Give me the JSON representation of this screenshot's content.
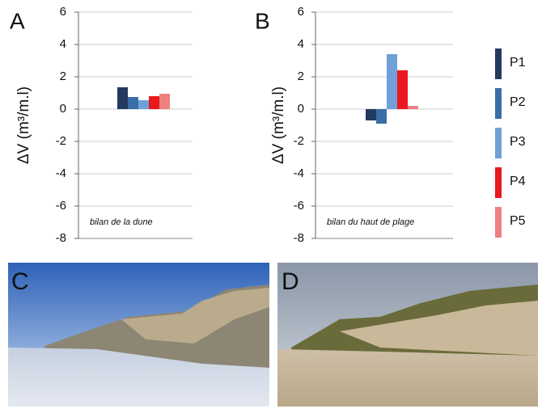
{
  "chart_data": [
    {
      "type": "bar",
      "panel": "A",
      "ylabel": "ΔV (m³/m.l)",
      "annotation": "bilan de la dune",
      "ylim": [
        -8,
        6
      ],
      "yticks": [
        -8,
        -6,
        -4,
        -2,
        0,
        2,
        4,
        6
      ],
      "grid": true,
      "series": [
        {
          "color": "#243a5e",
          "values": [
            1.35
          ]
        },
        {
          "color": "#3a6ea8",
          "values": [
            0.75
          ]
        },
        {
          "color": "#6fa0d8",
          "values": [
            0.55
          ]
        },
        {
          "color": "#e8191f",
          "values": [
            0.8
          ]
        },
        {
          "color": "#f08080",
          "values": [
            0.95
          ]
        }
      ]
    },
    {
      "type": "bar",
      "panel": "B",
      "ylabel": "ΔV (m³/m.l)",
      "annotation": "bilan du haut de plage",
      "ylim": [
        -8,
        6
      ],
      "yticks": [
        -8,
        -6,
        -4,
        -2,
        0,
        2,
        4,
        6
      ],
      "grid": true,
      "legend": "right",
      "series": [
        {
          "name": "P1",
          "color": "#243a5e",
          "values": [
            -0.7
          ]
        },
        {
          "name": "P2",
          "color": "#3a6ea8",
          "values": [
            -0.9
          ]
        },
        {
          "name": "P3",
          "color": "#6fa0d8",
          "values": [
            3.4
          ]
        },
        {
          "name": "P4",
          "color": "#e8191f",
          "values": [
            2.4
          ]
        },
        {
          "name": "P5",
          "color": "#f08080",
          "values": [
            0.2
          ]
        }
      ]
    }
  ],
  "photos": [
    {
      "label": "C"
    },
    {
      "label": "D"
    }
  ]
}
